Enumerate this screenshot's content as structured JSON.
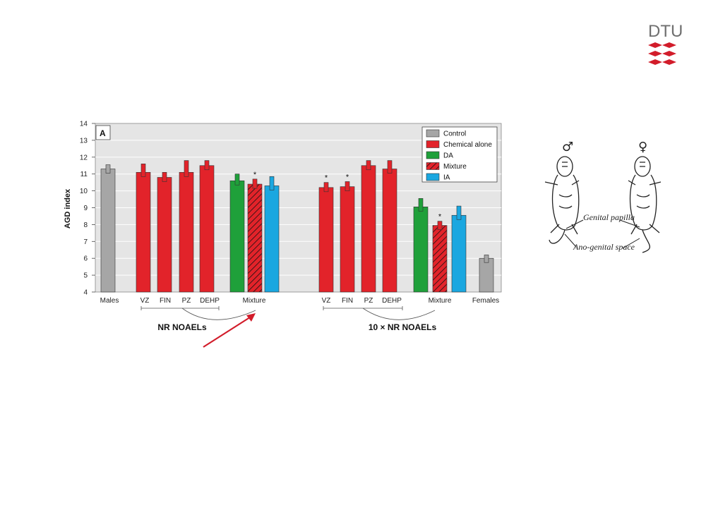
{
  "logo": {
    "text": "DTU",
    "color": "#d21c2a"
  },
  "chart_data": {
    "type": "bar",
    "panel_label": "A",
    "ylabel": "AGD index",
    "ylim": [
      4,
      14
    ],
    "yticks": [
      4,
      5,
      6,
      7,
      8,
      9,
      10,
      11,
      12,
      13,
      14
    ],
    "legend_position": "top-right",
    "legend": [
      {
        "name": "Control",
        "color": "#a6a6a6",
        "hatch": false
      },
      {
        "name": "Chemical alone",
        "color": "#e2232a",
        "hatch": false
      },
      {
        "name": "DA",
        "color": "#1fa03a",
        "hatch": false
      },
      {
        "name": "Mixture",
        "color": "#e2232a",
        "hatch": true
      },
      {
        "name": "IA",
        "color": "#1aa7e0",
        "hatch": false
      }
    ],
    "bars": [
      {
        "key": "males",
        "series": "Control",
        "value": 11.3,
        "err": 0.25,
        "star": false
      },
      {
        "key": "vz1",
        "series": "Chemical alone",
        "value": 11.1,
        "err": 0.5,
        "star": false
      },
      {
        "key": "fin1",
        "series": "Chemical alone",
        "value": 10.8,
        "err": 0.3,
        "star": false
      },
      {
        "key": "pz1",
        "series": "Chemical alone",
        "value": 11.1,
        "err": 0.7,
        "star": false
      },
      {
        "key": "dehp1",
        "series": "Chemical alone",
        "value": 11.5,
        "err": 0.3,
        "star": false
      },
      {
        "key": "da1",
        "series": "DA",
        "value": 10.6,
        "err": 0.4,
        "star": false
      },
      {
        "key": "mix1",
        "series": "Mixture",
        "value": 10.4,
        "err": 0.3,
        "star": true
      },
      {
        "key": "ia1",
        "series": "IA",
        "value": 10.3,
        "err": 0.55,
        "star": false
      },
      {
        "key": "vz2",
        "series": "Chemical alone",
        "value": 10.2,
        "err": 0.3,
        "star": true
      },
      {
        "key": "fin2",
        "series": "Chemical alone",
        "value": 10.25,
        "err": 0.3,
        "star": true
      },
      {
        "key": "pz2",
        "series": "Chemical alone",
        "value": 11.5,
        "err": 0.3,
        "star": false
      },
      {
        "key": "dehp2",
        "series": "Chemical alone",
        "value": 11.3,
        "err": 0.5,
        "star": false
      },
      {
        "key": "da2",
        "series": "DA",
        "value": 9.05,
        "err": 0.5,
        "star": false
      },
      {
        "key": "mix2",
        "series": "Mixture",
        "value": 7.95,
        "err": 0.25,
        "star": true
      },
      {
        "key": "ia2",
        "series": "IA",
        "value": 8.55,
        "err": 0.55,
        "star": false
      },
      {
        "key": "females",
        "series": "Control",
        "value": 6.0,
        "err": 0.2,
        "star": false
      }
    ],
    "category_labels": [
      "Males",
      "VZ",
      "FIN",
      "PZ",
      "DEHP",
      "Mixture",
      "VZ",
      "FIN",
      "PZ",
      "DEHP",
      "Mixture",
      "Females"
    ],
    "group_labels": [
      "NR NOAELs",
      "10 × NR NOAELs"
    ]
  },
  "illustration": {
    "male_symbol": "♂",
    "female_symbol": "♀",
    "label_genital": "Genital papilla",
    "label_anogenital": "Ano-genital space"
  }
}
